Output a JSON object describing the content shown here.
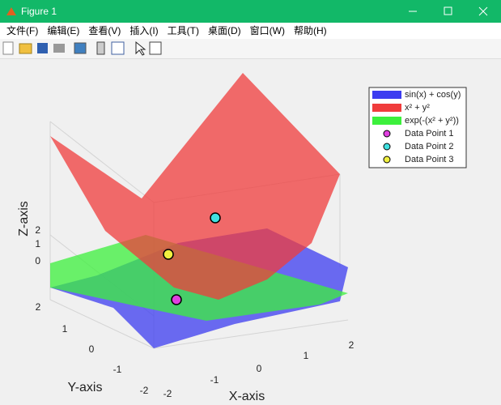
{
  "window": {
    "title": "Figure 1",
    "menu": [
      "文件(F)",
      "编辑(E)",
      "查看(V)",
      "插入(I)",
      "工具(T)",
      "桌面(D)",
      "窗口(W)",
      "帮助(H)"
    ]
  },
  "axes": {
    "xlabel": "X-axis",
    "ylabel": "Y-axis",
    "zlabel": "Z-axis",
    "xticks": [
      -2,
      -1,
      0,
      1,
      2
    ],
    "yticks": [
      2,
      1,
      0,
      -1,
      -2
    ],
    "zticks": [
      2,
      1,
      0
    ]
  },
  "legend": [
    {
      "label": "sin(x) + cos(y)",
      "color": "#3c3cf0",
      "kind": "surface"
    },
    {
      "label": "x² + y²",
      "color": "#f03c3c",
      "kind": "surface"
    },
    {
      "label": "exp(-(x² + y²))",
      "color": "#3cf03c",
      "kind": "surface"
    },
    {
      "label": "Data Point 1",
      "color": "#e040e0",
      "kind": "marker"
    },
    {
      "label": "Data Point 2",
      "color": "#40e0e0",
      "kind": "marker"
    },
    {
      "label": "Data Point 3",
      "color": "#f0f040",
      "kind": "marker"
    }
  ]
}
